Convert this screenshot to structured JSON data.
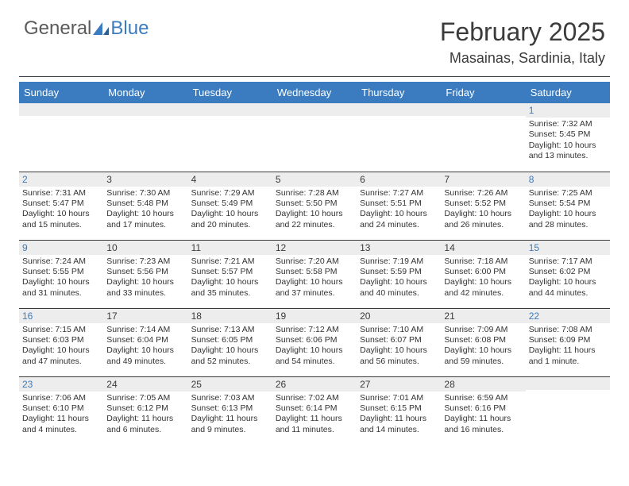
{
  "logo": {
    "part1": "General",
    "part2": "Blue"
  },
  "title": "February 2025",
  "location": "Masainas, Sardinia, Italy",
  "colors": {
    "header_bg": "#3a7cbf",
    "header_text": "#ffffff",
    "band_bg": "#ededed",
    "rule": "#3b3b3b",
    "body_text": "#333333",
    "weekend_num": "#3a7cbf"
  },
  "day_headers": [
    "Sunday",
    "Monday",
    "Tuesday",
    "Wednesday",
    "Thursday",
    "Friday",
    "Saturday"
  ],
  "weeks": [
    [
      {
        "n": "",
        "sr": "",
        "ss": "",
        "dl": ""
      },
      {
        "n": "",
        "sr": "",
        "ss": "",
        "dl": ""
      },
      {
        "n": "",
        "sr": "",
        "ss": "",
        "dl": ""
      },
      {
        "n": "",
        "sr": "",
        "ss": "",
        "dl": ""
      },
      {
        "n": "",
        "sr": "",
        "ss": "",
        "dl": ""
      },
      {
        "n": "",
        "sr": "",
        "ss": "",
        "dl": ""
      },
      {
        "n": "1",
        "sr": "Sunrise: 7:32 AM",
        "ss": "Sunset: 5:45 PM",
        "dl": "Daylight: 10 hours and 13 minutes."
      }
    ],
    [
      {
        "n": "2",
        "sr": "Sunrise: 7:31 AM",
        "ss": "Sunset: 5:47 PM",
        "dl": "Daylight: 10 hours and 15 minutes."
      },
      {
        "n": "3",
        "sr": "Sunrise: 7:30 AM",
        "ss": "Sunset: 5:48 PM",
        "dl": "Daylight: 10 hours and 17 minutes."
      },
      {
        "n": "4",
        "sr": "Sunrise: 7:29 AM",
        "ss": "Sunset: 5:49 PM",
        "dl": "Daylight: 10 hours and 20 minutes."
      },
      {
        "n": "5",
        "sr": "Sunrise: 7:28 AM",
        "ss": "Sunset: 5:50 PM",
        "dl": "Daylight: 10 hours and 22 minutes."
      },
      {
        "n": "6",
        "sr": "Sunrise: 7:27 AM",
        "ss": "Sunset: 5:51 PM",
        "dl": "Daylight: 10 hours and 24 minutes."
      },
      {
        "n": "7",
        "sr": "Sunrise: 7:26 AM",
        "ss": "Sunset: 5:52 PM",
        "dl": "Daylight: 10 hours and 26 minutes."
      },
      {
        "n": "8",
        "sr": "Sunrise: 7:25 AM",
        "ss": "Sunset: 5:54 PM",
        "dl": "Daylight: 10 hours and 28 minutes."
      }
    ],
    [
      {
        "n": "9",
        "sr": "Sunrise: 7:24 AM",
        "ss": "Sunset: 5:55 PM",
        "dl": "Daylight: 10 hours and 31 minutes."
      },
      {
        "n": "10",
        "sr": "Sunrise: 7:23 AM",
        "ss": "Sunset: 5:56 PM",
        "dl": "Daylight: 10 hours and 33 minutes."
      },
      {
        "n": "11",
        "sr": "Sunrise: 7:21 AM",
        "ss": "Sunset: 5:57 PM",
        "dl": "Daylight: 10 hours and 35 minutes."
      },
      {
        "n": "12",
        "sr": "Sunrise: 7:20 AM",
        "ss": "Sunset: 5:58 PM",
        "dl": "Daylight: 10 hours and 37 minutes."
      },
      {
        "n": "13",
        "sr": "Sunrise: 7:19 AM",
        "ss": "Sunset: 5:59 PM",
        "dl": "Daylight: 10 hours and 40 minutes."
      },
      {
        "n": "14",
        "sr": "Sunrise: 7:18 AM",
        "ss": "Sunset: 6:00 PM",
        "dl": "Daylight: 10 hours and 42 minutes."
      },
      {
        "n": "15",
        "sr": "Sunrise: 7:17 AM",
        "ss": "Sunset: 6:02 PM",
        "dl": "Daylight: 10 hours and 44 minutes."
      }
    ],
    [
      {
        "n": "16",
        "sr": "Sunrise: 7:15 AM",
        "ss": "Sunset: 6:03 PM",
        "dl": "Daylight: 10 hours and 47 minutes."
      },
      {
        "n": "17",
        "sr": "Sunrise: 7:14 AM",
        "ss": "Sunset: 6:04 PM",
        "dl": "Daylight: 10 hours and 49 minutes."
      },
      {
        "n": "18",
        "sr": "Sunrise: 7:13 AM",
        "ss": "Sunset: 6:05 PM",
        "dl": "Daylight: 10 hours and 52 minutes."
      },
      {
        "n": "19",
        "sr": "Sunrise: 7:12 AM",
        "ss": "Sunset: 6:06 PM",
        "dl": "Daylight: 10 hours and 54 minutes."
      },
      {
        "n": "20",
        "sr": "Sunrise: 7:10 AM",
        "ss": "Sunset: 6:07 PM",
        "dl": "Daylight: 10 hours and 56 minutes."
      },
      {
        "n": "21",
        "sr": "Sunrise: 7:09 AM",
        "ss": "Sunset: 6:08 PM",
        "dl": "Daylight: 10 hours and 59 minutes."
      },
      {
        "n": "22",
        "sr": "Sunrise: 7:08 AM",
        "ss": "Sunset: 6:09 PM",
        "dl": "Daylight: 11 hours and 1 minute."
      }
    ],
    [
      {
        "n": "23",
        "sr": "Sunrise: 7:06 AM",
        "ss": "Sunset: 6:10 PM",
        "dl": "Daylight: 11 hours and 4 minutes."
      },
      {
        "n": "24",
        "sr": "Sunrise: 7:05 AM",
        "ss": "Sunset: 6:12 PM",
        "dl": "Daylight: 11 hours and 6 minutes."
      },
      {
        "n": "25",
        "sr": "Sunrise: 7:03 AM",
        "ss": "Sunset: 6:13 PM",
        "dl": "Daylight: 11 hours and 9 minutes."
      },
      {
        "n": "26",
        "sr": "Sunrise: 7:02 AM",
        "ss": "Sunset: 6:14 PM",
        "dl": "Daylight: 11 hours and 11 minutes."
      },
      {
        "n": "27",
        "sr": "Sunrise: 7:01 AM",
        "ss": "Sunset: 6:15 PM",
        "dl": "Daylight: 11 hours and 14 minutes."
      },
      {
        "n": "28",
        "sr": "Sunrise: 6:59 AM",
        "ss": "Sunset: 6:16 PM",
        "dl": "Daylight: 11 hours and 16 minutes."
      },
      {
        "n": "",
        "sr": "",
        "ss": "",
        "dl": ""
      }
    ]
  ]
}
